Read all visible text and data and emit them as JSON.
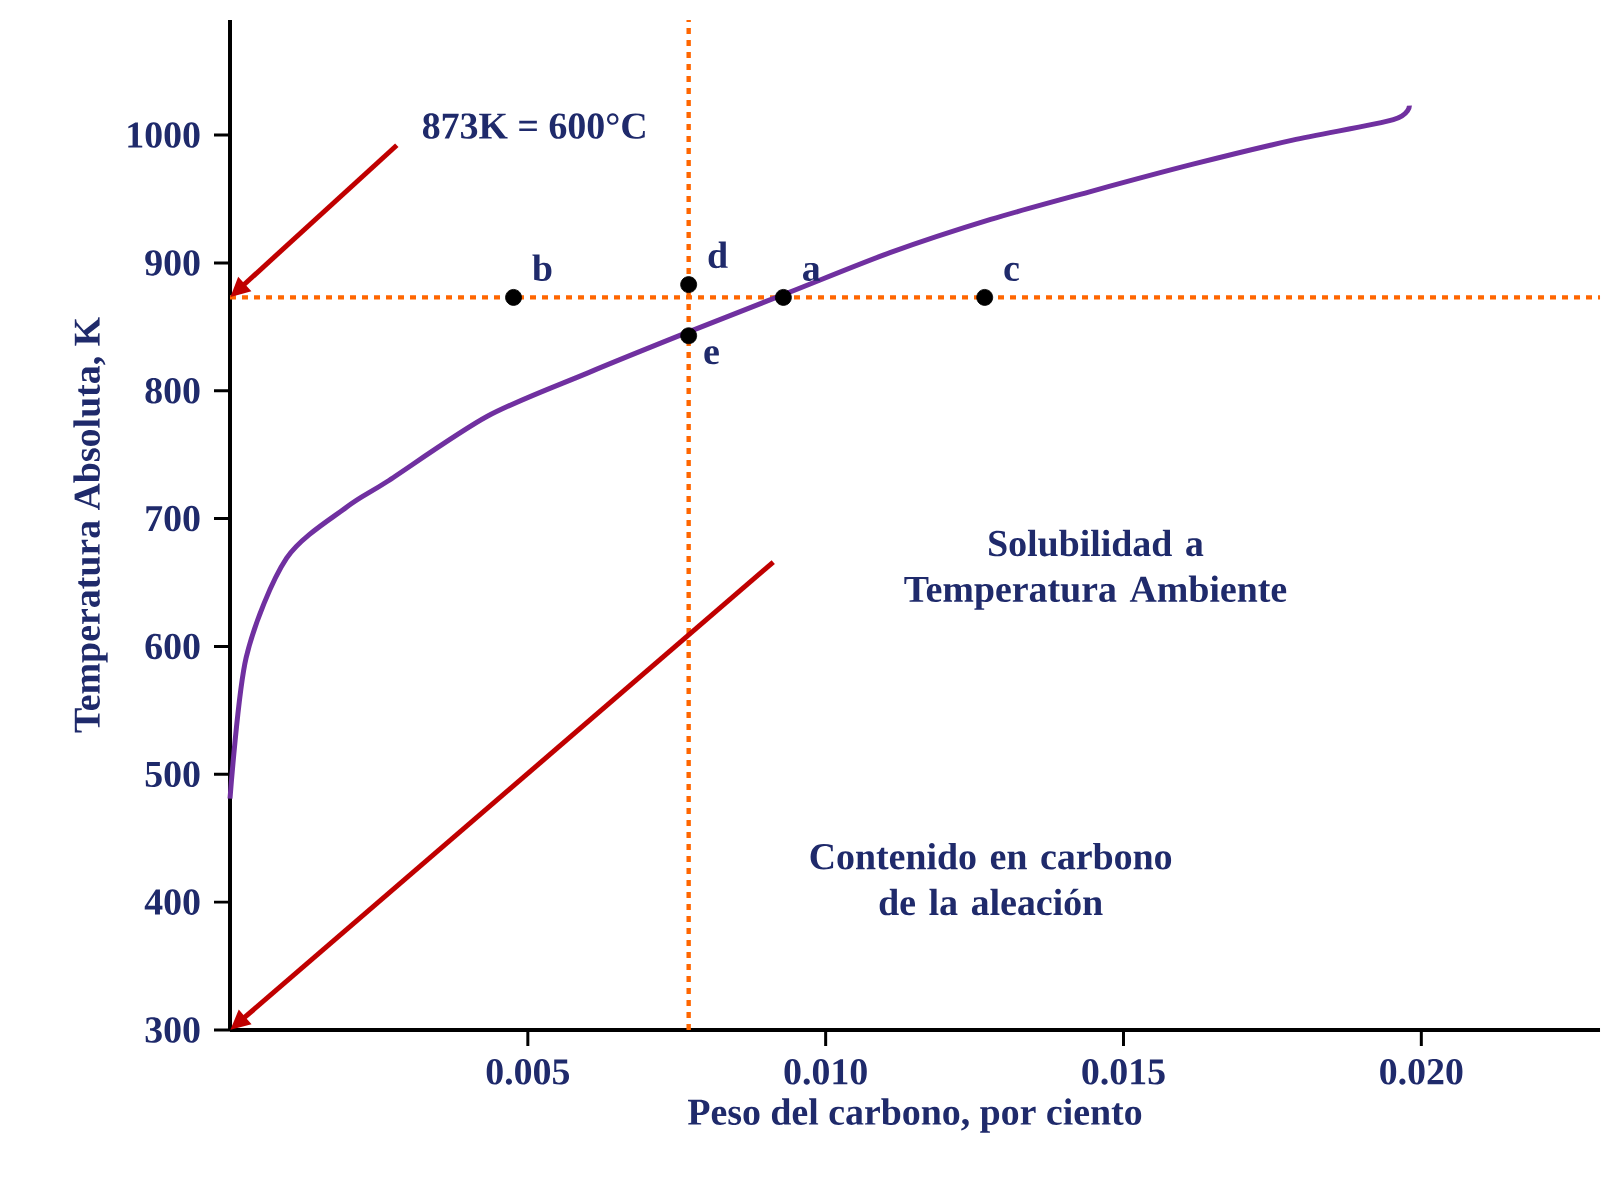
{
  "chart_data": {
    "type": "line",
    "xlabel": "Peso del carbono, por ciento",
    "ylabel": "Temperatura Absoluta, K",
    "xlim": [
      0,
      0.023
    ],
    "ylim": [
      300,
      1090
    ],
    "xticks": [
      {
        "value": 0.005,
        "label": "0.005"
      },
      {
        "value": 0.01,
        "label": "0.010"
      },
      {
        "value": 0.015,
        "label": "0.015"
      },
      {
        "value": 0.02,
        "label": "0.020"
      }
    ],
    "yticks": [
      300,
      400,
      500,
      600,
      700,
      800,
      900,
      1000
    ],
    "grid": false,
    "series": [
      {
        "color": "#7030a0",
        "marker": "none",
        "x": [
          0,
          0.00027,
          0.00095,
          0.00196,
          0.00264,
          0.00432,
          0.00601,
          0.0077,
          0.00939,
          0.01108,
          0.01277,
          0.01446,
          0.01615,
          0.01784,
          0.01953,
          0.0198
        ],
        "values": [
          481,
          591,
          669,
          709,
          729,
          780,
          814,
          846,
          877,
          908,
          934,
          956,
          977,
          996,
          1012,
          1023
        ]
      },
      {
        "type": "scatter",
        "color": "#000000",
        "marker": "circle",
        "x": [
          0.00476,
          0.0077,
          0.00929,
          0.01267,
          0.0077
        ],
        "values": [
          873,
          883,
          873,
          873,
          843
        ]
      }
    ],
    "ref_lines": [
      {
        "axis": "y",
        "value": 873,
        "color": "#ff6600",
        "line_style": "dotted"
      },
      {
        "axis": "x",
        "value": 0.0077,
        "color": "#ff6600",
        "line_style": "dotted"
      }
    ],
    "annotations": [
      "873K = 600°C",
      "Solubilidad a Temperatura Ambiente",
      "Contenido en carbono de la aleación",
      {
        "text": "b",
        "x": 0.00476,
        "y": 873
      },
      {
        "text": "d",
        "x": 0.0077,
        "y": 883
      },
      {
        "text": "a",
        "x": 0.00929,
        "y": 873
      },
      {
        "text": "c",
        "x": 0.01267,
        "y": 873
      },
      {
        "text": "e",
        "x": 0.0077,
        "y": 843
      }
    ]
  }
}
